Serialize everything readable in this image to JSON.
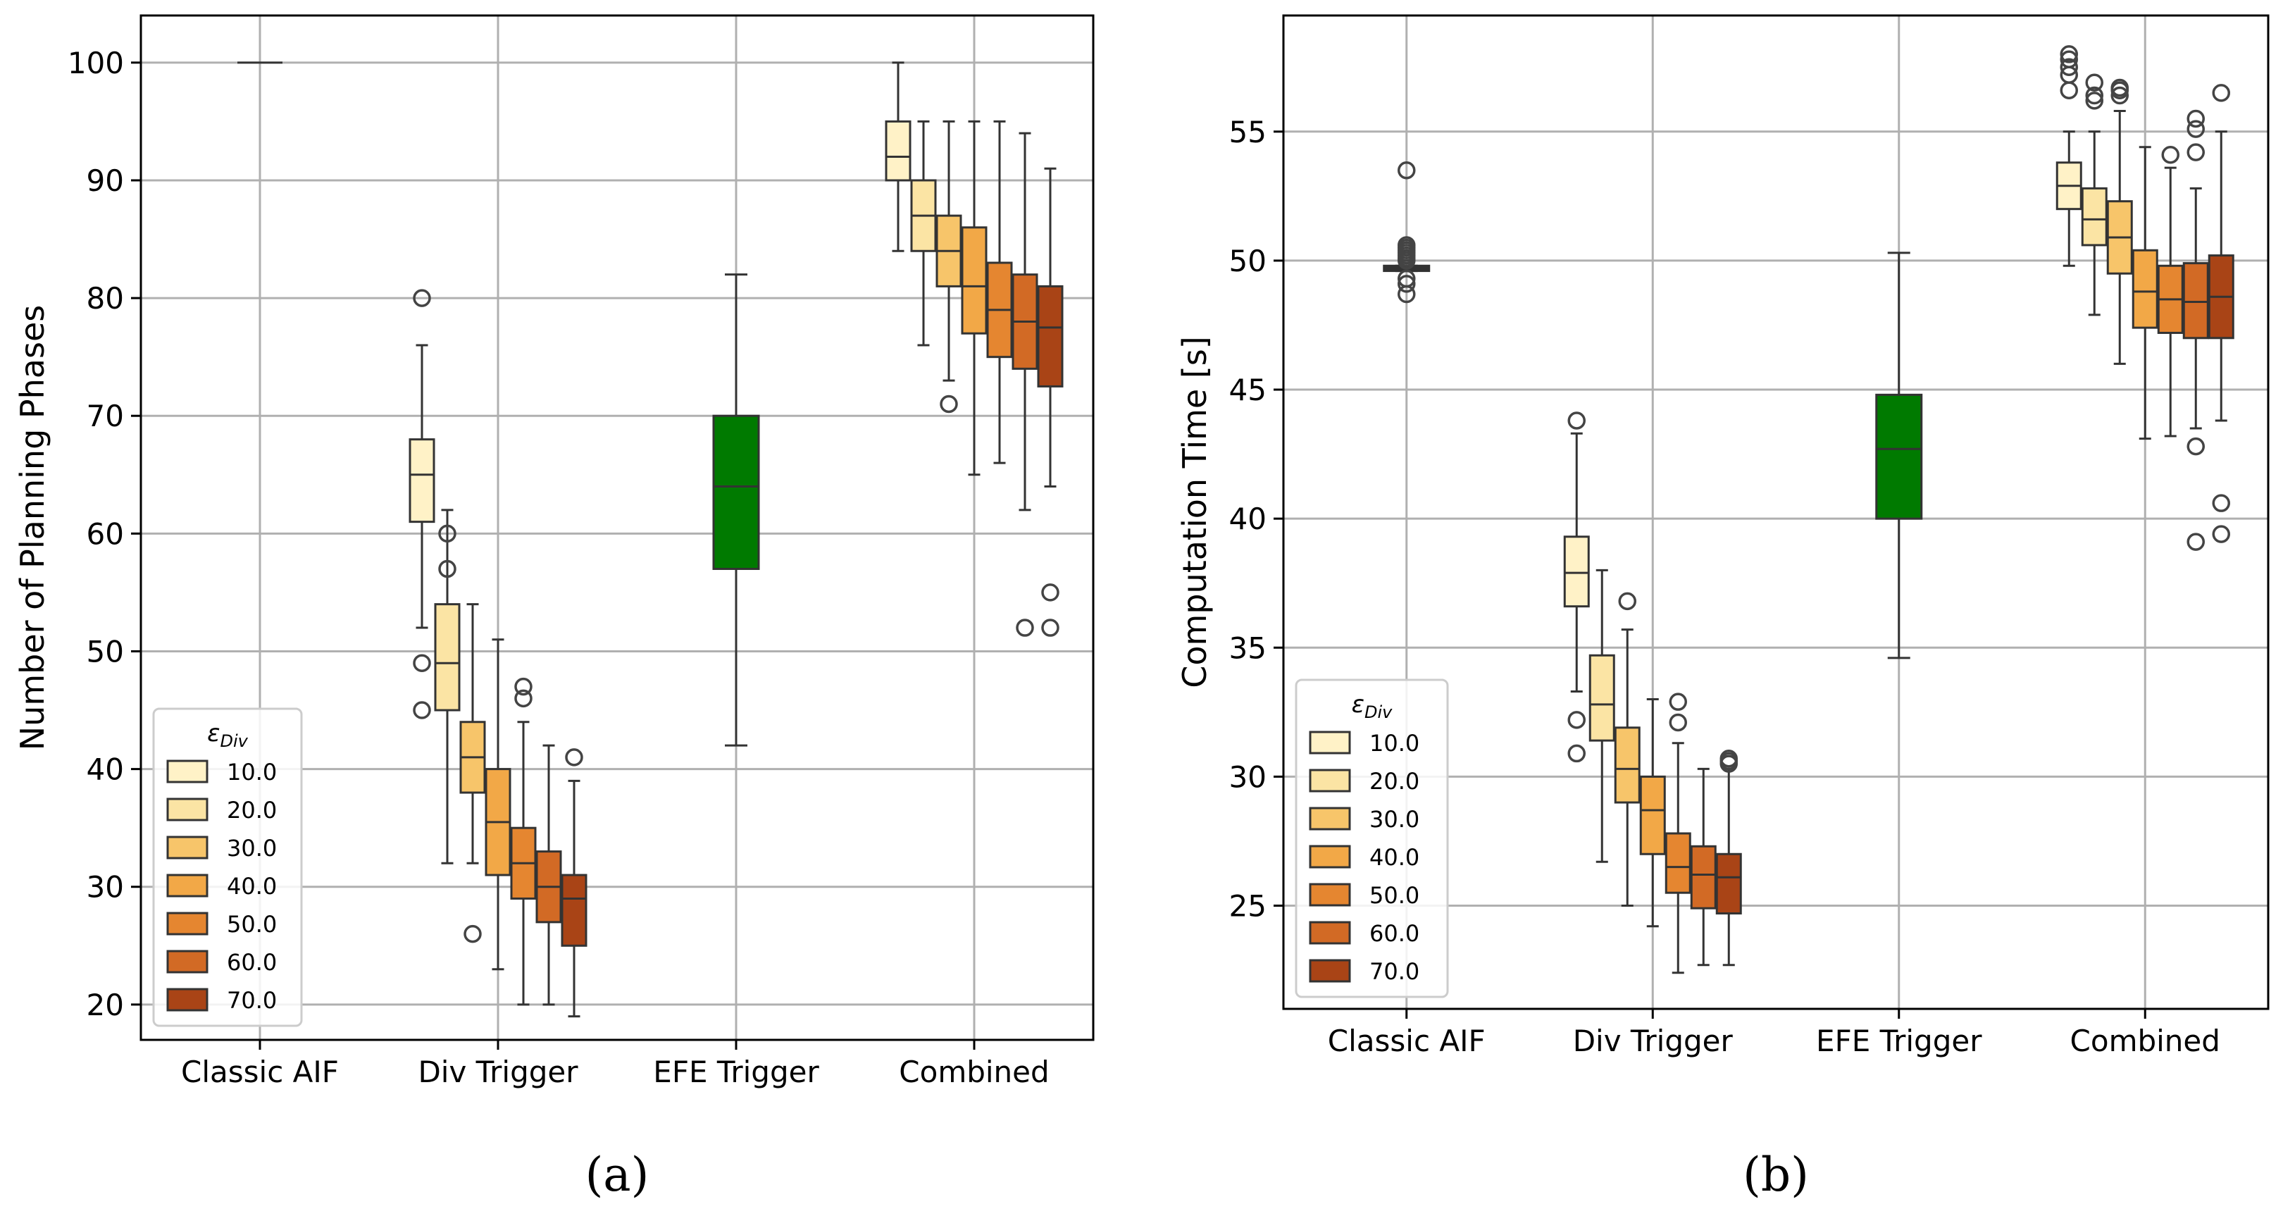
{
  "colors": {
    "eps_palette": [
      "#fff2c7",
      "#fbe4a4",
      "#f7c56a",
      "#f2a847",
      "#e58630",
      "#d26a25",
      "#a94416"
    ],
    "efe_box": "#007a00",
    "classic_points": "#4d4d4d",
    "grid": "#b0b0b0",
    "edge": "#333333"
  },
  "chart_data": [
    {
      "id": "a",
      "type": "box",
      "panel_label": "(a)",
      "ylabel": "Number of Planning Phases",
      "xlabel": "",
      "ylim": [
        17,
        104
      ],
      "yticks": [
        20,
        30,
        40,
        50,
        60,
        70,
        80,
        90,
        100
      ],
      "grid": true,
      "categories": [
        "Classic AIF",
        "Div Trigger",
        "EFE Trigger",
        "Combined"
      ],
      "legend": {
        "title": "ε",
        "title_sub": "Div",
        "placement": "lower-left",
        "entries": [
          "10.0",
          "20.0",
          "30.0",
          "40.0",
          "50.0",
          "60.0",
          "70.0"
        ]
      },
      "groups": [
        {
          "category": "Classic AIF",
          "style": "line",
          "boxes": [
            {
              "q1": 100,
              "median": 100,
              "q3": 100,
              "low": 100,
              "high": 100,
              "outliers": []
            }
          ]
        },
        {
          "category": "Div Trigger",
          "style": "eps",
          "boxes": [
            {
              "q1": 61,
              "median": 65,
              "q3": 68,
              "low": 52,
              "high": 76,
              "outliers": [
                80,
                49,
                45
              ]
            },
            {
              "q1": 45,
              "median": 49,
              "q3": 54,
              "low": 32,
              "high": 62,
              "outliers": [
                60,
                57
              ]
            },
            {
              "q1": 38,
              "median": 41,
              "q3": 44,
              "low": 32,
              "high": 54,
              "outliers": [
                26
              ]
            },
            {
              "q1": 31,
              "median": 35.5,
              "q3": 40,
              "low": 23,
              "high": 51,
              "outliers": []
            },
            {
              "q1": 29,
              "median": 32,
              "q3": 35,
              "low": 20,
              "high": 44,
              "outliers": [
                47,
                46
              ]
            },
            {
              "q1": 27,
              "median": 30,
              "q3": 33,
              "low": 20,
              "high": 42,
              "outliers": []
            },
            {
              "q1": 25,
              "median": 29,
              "q3": 31,
              "low": 19,
              "high": 39,
              "outliers": [
                41
              ]
            }
          ]
        },
        {
          "category": "EFE Trigger",
          "style": "single",
          "boxes": [
            {
              "q1": 57,
              "median": 64,
              "q3": 70,
              "low": 42,
              "high": 82,
              "outliers": []
            }
          ]
        },
        {
          "category": "Combined",
          "style": "eps",
          "boxes": [
            {
              "q1": 90,
              "median": 92,
              "q3": 95,
              "low": 84,
              "high": 100,
              "outliers": []
            },
            {
              "q1": 84,
              "median": 87,
              "q3": 90,
              "low": 76,
              "high": 95,
              "outliers": []
            },
            {
              "q1": 81,
              "median": 84,
              "q3": 87,
              "low": 73,
              "high": 95,
              "outliers": [
                71
              ]
            },
            {
              "q1": 77,
              "median": 81,
              "q3": 86,
              "low": 65,
              "high": 95,
              "outliers": []
            },
            {
              "q1": 75,
              "median": 79,
              "q3": 83,
              "low": 66,
              "high": 95,
              "outliers": []
            },
            {
              "q1": 74,
              "median": 78,
              "q3": 82,
              "low": 62,
              "high": 94,
              "outliers": [
                52
              ]
            },
            {
              "q1": 72.5,
              "median": 77.5,
              "q3": 81,
              "low": 64,
              "high": 91,
              "outliers": [
                55,
                52
              ]
            }
          ]
        }
      ]
    },
    {
      "id": "b",
      "type": "box",
      "panel_label": "(b)",
      "ylabel": "Computation Time [s]",
      "xlabel": "",
      "ylim": [
        21,
        59.5
      ],
      "yticks": [
        25,
        30,
        35,
        40,
        45,
        50,
        55
      ],
      "grid": true,
      "categories": [
        "Classic AIF",
        "Div Trigger",
        "EFE Trigger",
        "Combined"
      ],
      "legend": {
        "title": "ε",
        "title_sub": "Div",
        "placement": "lower-left",
        "entries": [
          "10.0",
          "20.0",
          "30.0",
          "40.0",
          "50.0",
          "60.0",
          "70.0"
        ]
      },
      "groups": [
        {
          "category": "Classic AIF",
          "style": "points",
          "boxes": [
            {
              "q1": 49.6,
              "median": 49.7,
              "q3": 49.8,
              "low": 49.6,
              "high": 49.8,
              "outliers": [
                53.5,
                50.6,
                50.5,
                50.4,
                50.3,
                50.2,
                50.1,
                50.0,
                49.3,
                49.1,
                48.7
              ]
            }
          ]
        },
        {
          "category": "Div Trigger",
          "style": "eps",
          "boxes": [
            {
              "q1": 36.6,
              "median": 37.9,
              "q3": 39.3,
              "low": 33.3,
              "high": 43.3,
              "outliers": [
                43.8,
                32.2,
                30.9
              ]
            },
            {
              "q1": 31.4,
              "median": 32.8,
              "q3": 34.7,
              "low": 26.7,
              "high": 38.0,
              "outliers": []
            },
            {
              "q1": 29.0,
              "median": 30.3,
              "q3": 31.9,
              "low": 25.0,
              "high": 35.7,
              "outliers": [
                36.8
              ]
            },
            {
              "q1": 27.0,
              "median": 28.7,
              "q3": 30.0,
              "low": 24.2,
              "high": 33.0,
              "outliers": []
            },
            {
              "q1": 25.5,
              "median": 26.5,
              "q3": 27.8,
              "low": 22.4,
              "high": 31.3,
              "outliers": [
                32.9,
                32.1
              ]
            },
            {
              "q1": 24.9,
              "median": 26.2,
              "q3": 27.3,
              "low": 22.7,
              "high": 30.3,
              "outliers": []
            },
            {
              "q1": 24.7,
              "median": 26.1,
              "q3": 27.0,
              "low": 22.7,
              "high": 30.3,
              "outliers": [
                30.7,
                30.6,
                30.5
              ]
            }
          ]
        },
        {
          "category": "EFE Trigger",
          "style": "single",
          "boxes": [
            {
              "q1": 40.0,
              "median": 42.7,
              "q3": 44.8,
              "low": 34.6,
              "high": 50.3,
              "outliers": []
            }
          ]
        },
        {
          "category": "Combined",
          "style": "eps",
          "boxes": [
            {
              "q1": 52.0,
              "median": 52.9,
              "q3": 53.8,
              "low": 49.8,
              "high": 55.0,
              "outliers": [
                58.0,
                57.8,
                57.5,
                57.2,
                56.6
              ]
            },
            {
              "q1": 50.6,
              "median": 51.6,
              "q3": 52.8,
              "low": 47.9,
              "high": 55.0,
              "outliers": [
                56.9,
                56.4,
                56.2
              ]
            },
            {
              "q1": 49.5,
              "median": 50.9,
              "q3": 52.3,
              "low": 46.0,
              "high": 55.8,
              "outliers": [
                56.7,
                56.6,
                56.4
              ]
            },
            {
              "q1": 47.4,
              "median": 48.8,
              "q3": 50.4,
              "low": 43.1,
              "high": 54.4,
              "outliers": []
            },
            {
              "q1": 47.2,
              "median": 48.5,
              "q3": 49.8,
              "low": 43.2,
              "high": 53.6,
              "outliers": [
                54.1
              ]
            },
            {
              "q1": 47.0,
              "median": 48.4,
              "q3": 49.9,
              "low": 43.5,
              "high": 52.8,
              "outliers": [
                55.5,
                55.1,
                54.2,
                42.8,
                39.1
              ]
            },
            {
              "q1": 47.0,
              "median": 48.6,
              "q3": 50.2,
              "low": 43.8,
              "high": 55.0,
              "outliers": [
                56.5,
                40.6,
                39.4
              ]
            }
          ]
        }
      ]
    }
  ]
}
